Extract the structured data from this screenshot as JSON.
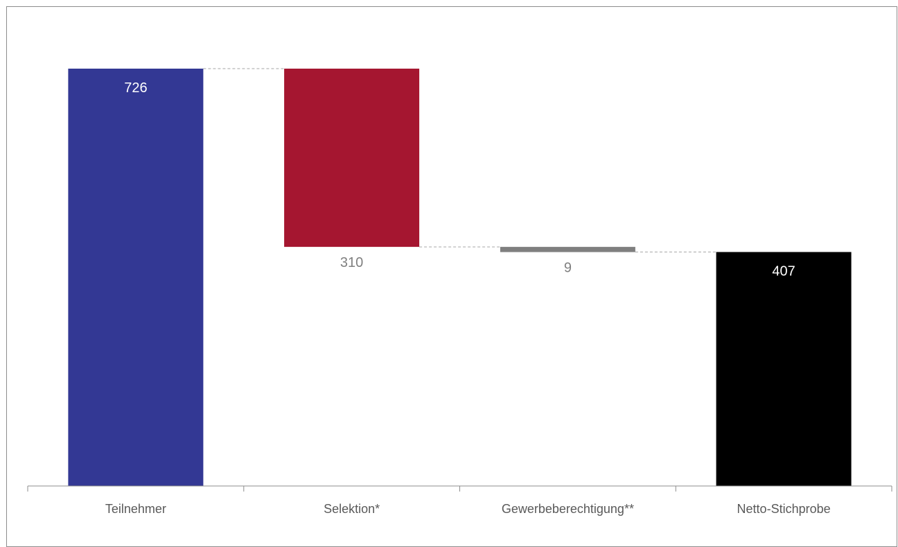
{
  "chart_data": {
    "type": "bar",
    "subtype": "waterfall",
    "categories": [
      "Teilnehmer",
      "Selektion*",
      "Gewerbeberechtigung**",
      "Netto-Stichprobe"
    ],
    "values": [
      726,
      310,
      9,
      407
    ],
    "kinds": [
      "total",
      "decrease",
      "decrease",
      "total"
    ],
    "colors": [
      "#333894",
      "#a51630",
      "#7f7f7f",
      "#000000"
    ],
    "label_colors": [
      "#ffffff",
      "#7f7f7f",
      "#7f7f7f",
      "#ffffff"
    ],
    "ylim": [
      0,
      726
    ],
    "grid": false,
    "legend": "none",
    "connector_color": "#a6a6a6",
    "axis_color": "#8c8c8c"
  }
}
